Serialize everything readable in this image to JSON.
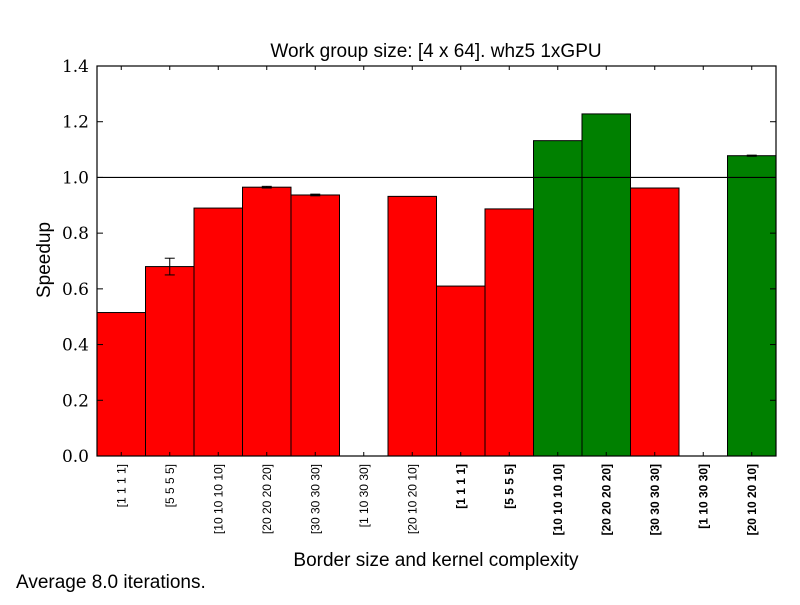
{
  "chart_data": {
    "type": "bar",
    "title": "Work group size: [4 x 64]. whz5 1xGPU",
    "xlabel": "Border size and kernel complexity",
    "ylabel": "Speedup",
    "ylim": [
      0.0,
      1.4
    ],
    "yticks": [
      "0.0",
      "0.2",
      "0.4",
      "0.6",
      "0.8",
      "1.0",
      "1.2",
      "1.4"
    ],
    "reference_line": 1.0,
    "grid": false,
    "categories": [
      "[1 1 1 1]",
      "[5 5 5 5]",
      "[10 10 10 10]",
      "[20 20 20 20]",
      "[30 30 30 30]",
      "[1 10 30 30]",
      "[20 10 20 10]",
      "[1 1 1 1]",
      "[5 5 5 5]",
      "[10 10 10 10]",
      "[20 20 20 20]",
      "[30 30 30 30]",
      "[1 10 30 30]",
      "[20 10 20 10]"
    ],
    "category_bold": [
      false,
      false,
      false,
      false,
      false,
      false,
      false,
      true,
      true,
      true,
      true,
      true,
      true,
      true
    ],
    "values": [
      0.515,
      0.68,
      0.89,
      0.965,
      0.937,
      0.0,
      0.932,
      0.61,
      0.887,
      1.132,
      1.228,
      0.962,
      0.0,
      1.078
    ],
    "errors": [
      0,
      0.03,
      0,
      0.003,
      0.003,
      0,
      0,
      0,
      0,
      0,
      0,
      0,
      0,
      0.002
    ],
    "colors": {
      "below_one": "#ff0000",
      "above_one": "#008000",
      "edge": "#000000"
    },
    "footer": "Average 8.0 iterations."
  }
}
